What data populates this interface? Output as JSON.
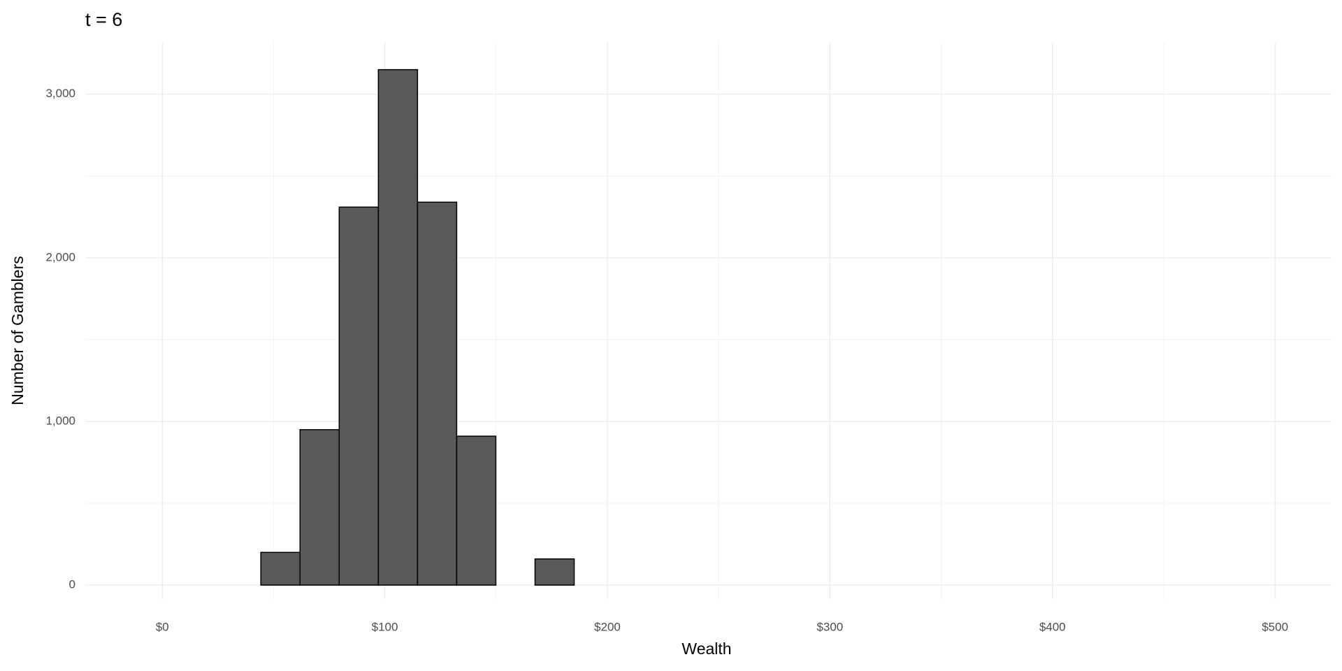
{
  "chart_data": {
    "type": "histogram",
    "title": "t = 6",
    "x_label": "Wealth",
    "y_label": "Number of Gamblers",
    "bins": [
      -8.5,
      9.1,
      26.7,
      44.3,
      61.9,
      79.5,
      97.1,
      114.7,
      132.3,
      149.9,
      167.5,
      185.1,
      202.7,
      220.3,
      237.9,
      255.5,
      273.1,
      290.7,
      308.3,
      325.9,
      343.5,
      361.1,
      378.7,
      396.3,
      413.9,
      431.5,
      449.1,
      466.7,
      484.3
    ],
    "values": [
      0,
      0,
      0,
      200,
      950,
      2310,
      3150,
      2340,
      910,
      0,
      160,
      0,
      0,
      0,
      0,
      0,
      0,
      0,
      0,
      0,
      0,
      0,
      0,
      0,
      0,
      0,
      0,
      0
    ],
    "color": "#595959",
    "edge_color": "#000000",
    "xlim": [
      -34.6,
      525.4
    ],
    "ylim": [
      -85,
      3315
    ],
    "xticks": [
      {
        "value": 0,
        "label": "$0"
      },
      {
        "value": 100,
        "label": "$100"
      },
      {
        "value": 200,
        "label": "$200"
      },
      {
        "value": 300,
        "label": "$300"
      },
      {
        "value": 400,
        "label": "$400"
      },
      {
        "value": 500,
        "label": "$500"
      }
    ],
    "yticks": [
      0,
      {
        "value": 1000,
        "label": "1,000"
      },
      {
        "value": 2000,
        "label": "2,000"
      },
      {
        "value": 3000,
        "label": "3,000"
      }
    ],
    "x_minor_ticks": [
      50,
      150,
      250,
      350,
      450
    ],
    "y_minor_ticks": [
      500,
      1500,
      2500
    ],
    "grid": true
  }
}
